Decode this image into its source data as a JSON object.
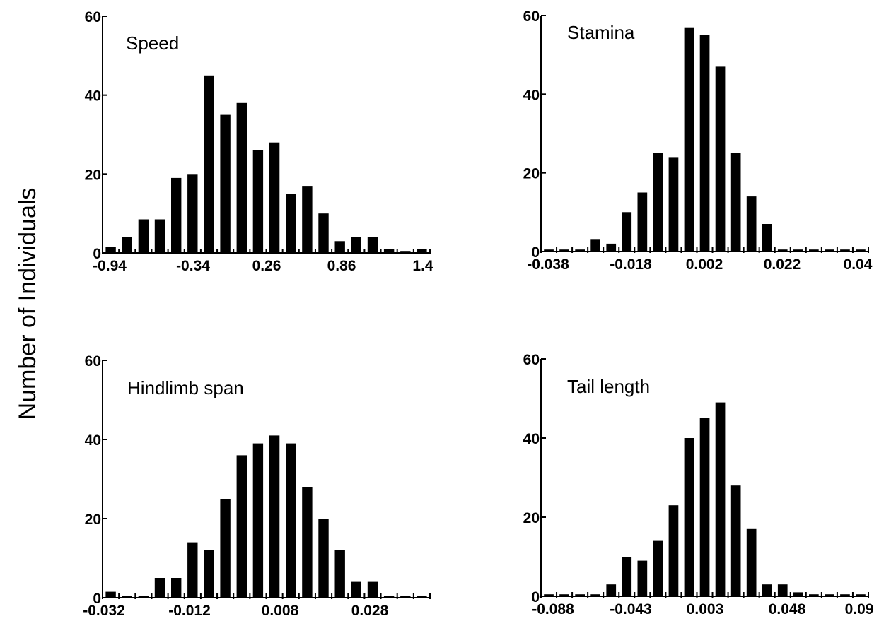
{
  "figure": {
    "ylabel": "Number of Individuals"
  },
  "chart_data": [
    {
      "type": "bar",
      "title": "Speed",
      "ylim": [
        0,
        60
      ],
      "yticks": [
        "0",
        "20",
        "40",
        "60"
      ],
      "xticks": [
        "-0.94",
        "-0.34",
        "0.26",
        "0.86",
        "1.4"
      ],
      "values": [
        1.5,
        4,
        8.5,
        8.5,
        19,
        20,
        45,
        35,
        38,
        26,
        28,
        15,
        17,
        10,
        3,
        4,
        4,
        1,
        0.5,
        1
      ]
    },
    {
      "type": "bar",
      "title": "Stamina",
      "ylim": [
        0,
        60
      ],
      "yticks": [
        "0",
        "20",
        "40",
        "60"
      ],
      "xticks": [
        "-0.038",
        "-0.018",
        "0.002",
        "0.022",
        "0.04"
      ],
      "values": [
        0.5,
        0.5,
        0.5,
        3,
        2,
        10,
        15,
        25,
        24,
        57,
        55,
        47,
        25,
        14,
        7,
        0.5,
        0.5,
        0.5,
        0.5,
        0.5,
        0.5
      ]
    },
    {
      "type": "bar",
      "title": "Hindlimb span",
      "ylim": [
        0,
        60
      ],
      "yticks": [
        "0",
        "20",
        "40",
        "60"
      ],
      "xticks": [
        "-0.032",
        "-0.012",
        "0.008",
        "0.028"
      ],
      "values": [
        1.5,
        0.5,
        0.5,
        5,
        5,
        14,
        12,
        25,
        36,
        39,
        41,
        39,
        28,
        20,
        12,
        4,
        4,
        0.5,
        0.5,
        0.5
      ]
    },
    {
      "type": "bar",
      "title": "Tail length",
      "ylim": [
        0,
        60
      ],
      "yticks": [
        "0",
        "20",
        "40",
        "60"
      ],
      "xticks": [
        "-0.088",
        "-0.043",
        "0.003",
        "0.048",
        "0.09"
      ],
      "values": [
        0.5,
        0.5,
        0.5,
        0.5,
        3,
        10,
        9,
        14,
        23,
        40,
        45,
        49,
        28,
        17,
        3,
        3,
        1,
        0.5,
        0.5,
        0.5,
        0.5
      ]
    }
  ]
}
